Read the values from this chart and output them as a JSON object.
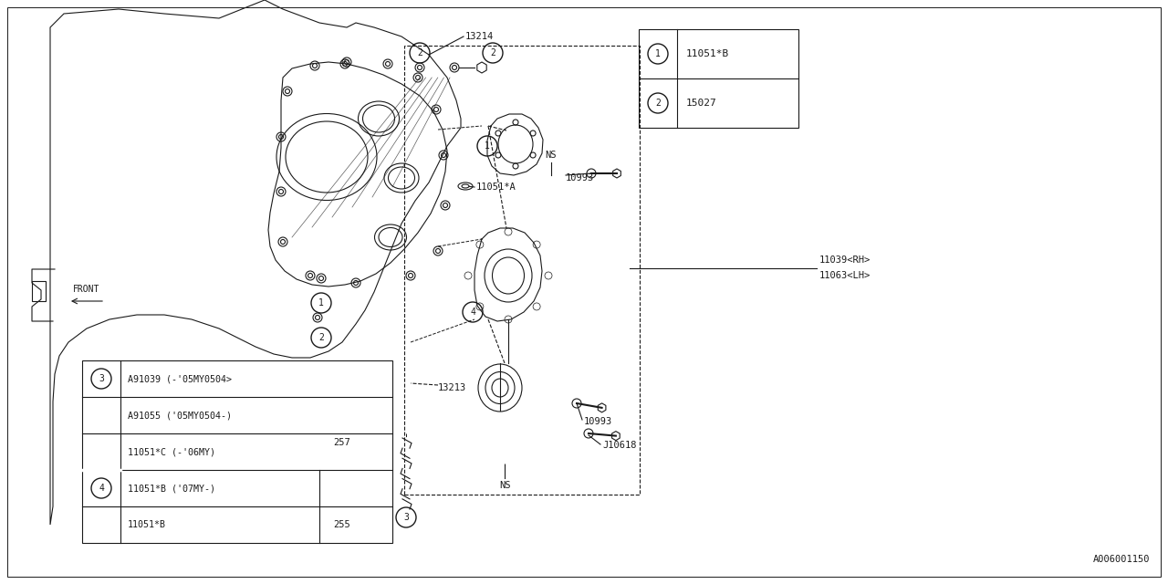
{
  "bg_color": "#ffffff",
  "line_color": "#1a1a1a",
  "fig_width": 12.8,
  "fig_height": 6.4,
  "watermark": "A006001150",
  "front_label": "FRONT",
  "legend_top_items": [
    {
      "num": 1,
      "code": "11051*B"
    },
    {
      "num": 2,
      "code": "15027"
    }
  ],
  "label_13214": "13214",
  "label_11051A": "11051*A",
  "label_NS1": "NS",
  "label_NS2": "NS",
  "label_10993a": "10993",
  "label_10993b": "10993",
  "label_J10618": "J10618",
  "label_13213": "13213",
  "label_11039": "11039<RH>",
  "label_11063": "11063<LH>",
  "bleg_row1a": "A91039 (-'05MY0504>",
  "bleg_row1b": "A91055 ('05MY0504-)",
  "bleg_row2a": "11051*C (-'06MY)",
  "bleg_row2b": "11051*B ('07MY-)",
  "bleg_row2c": "257",
  "bleg_row3a": "11051*B",
  "bleg_row3b": "255"
}
